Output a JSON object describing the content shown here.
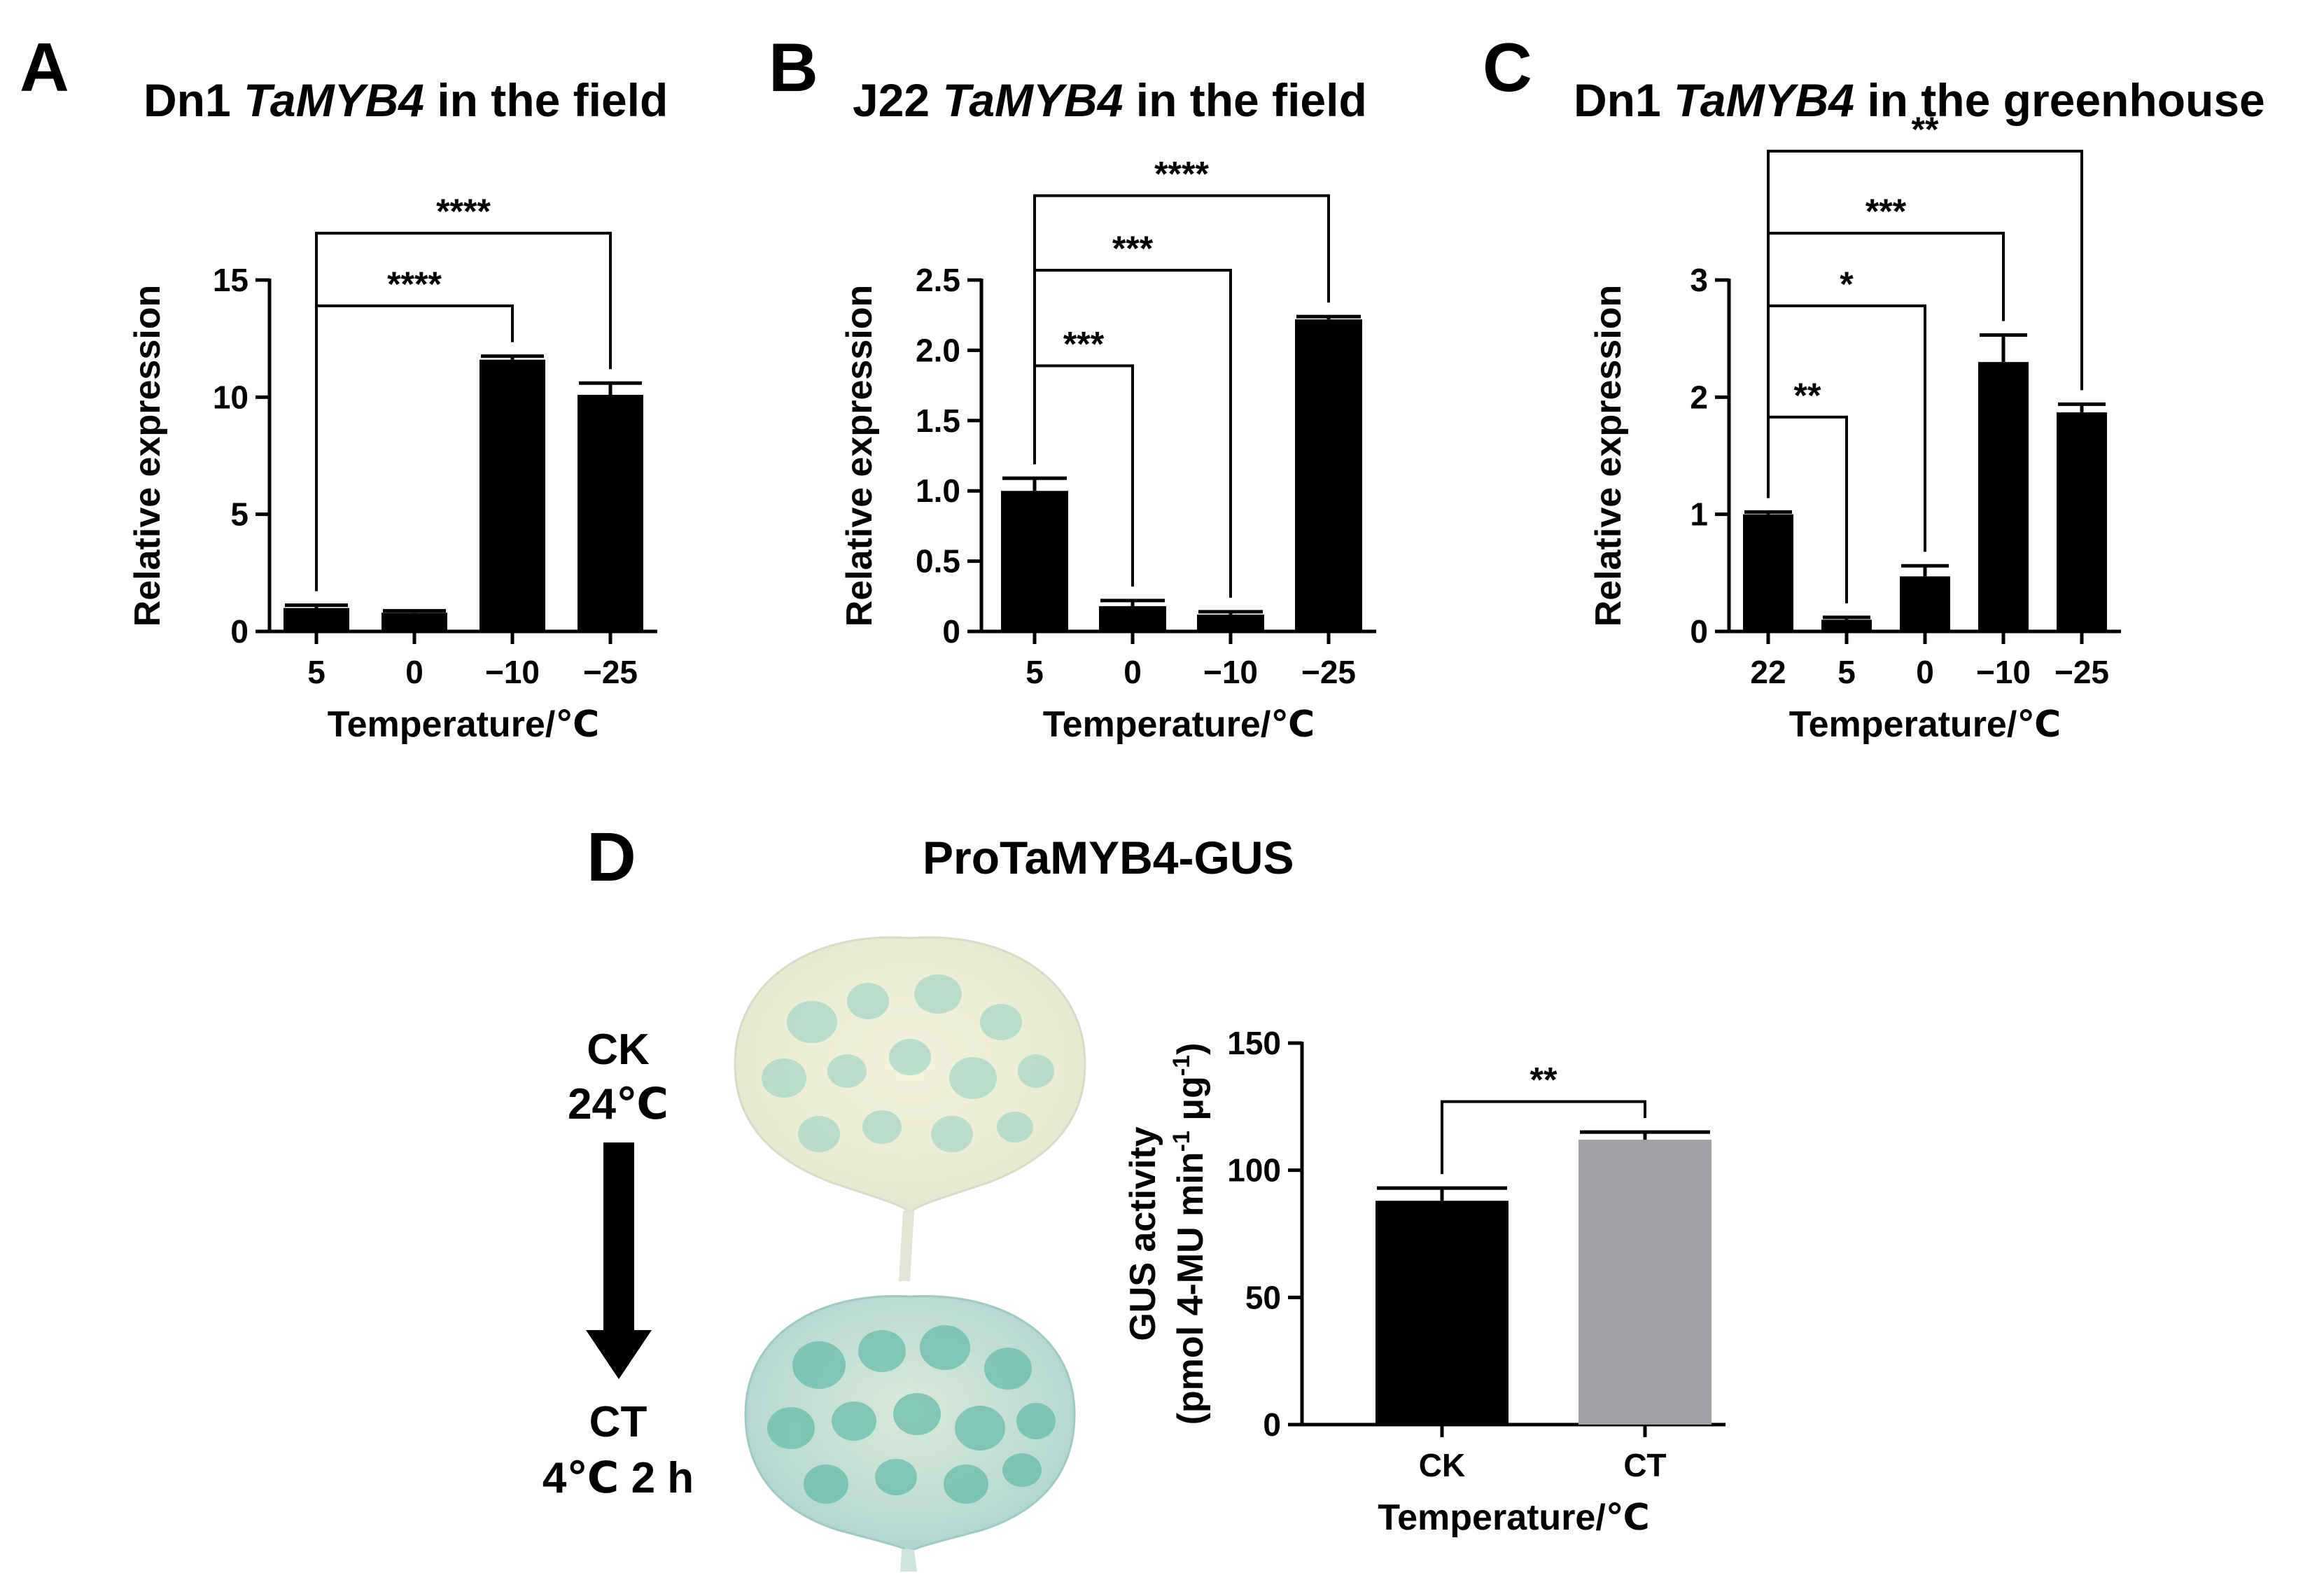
{
  "figure": {
    "panels": {
      "A": {
        "letter": "A",
        "title_prefix": "Dn1 ",
        "title_italic": "TaMYB4",
        "title_suffix": " in the field"
      },
      "B": {
        "letter": "B",
        "title_prefix": "J22 ",
        "title_italic": "TaMYB4",
        "title_suffix": " in the field"
      },
      "C": {
        "letter": "C",
        "title_prefix": "Dn1 ",
        "title_italic": "TaMYB4",
        "title_suffix": " in the greenhouse"
      },
      "D": {
        "letter": "D",
        "title": "ProTaMYB4-GUS",
        "condition_top_line1": "CK",
        "condition_top_line2": "24℃",
        "condition_bottom_line1": "CT",
        "condition_bottom_line2": "4℃ 2 h",
        "leaf_top_icon": "leaf-light-staining",
        "leaf_bottom_icon": "leaf-strong-staining",
        "arrow_icon": "down-arrow"
      }
    }
  },
  "chart_data": [
    {
      "id": "A",
      "type": "bar",
      "title": "Dn1 TaMYB4 in the field",
      "xlabel": "Temperature/℃",
      "ylabel": "Relative expression",
      "categories": [
        "5",
        "0",
        "−10",
        "−25"
      ],
      "values": [
        1.0,
        0.8,
        11.6,
        10.1
      ],
      "errors": [
        0.12,
        0.08,
        0.15,
        0.5
      ],
      "ylim": [
        0,
        15
      ],
      "yticks": [
        "0",
        "5",
        "10",
        "15"
      ],
      "ytick_values": [
        0,
        5,
        10,
        15
      ],
      "bar_colors": [
        "#000000",
        "#000000",
        "#000000",
        "#000000"
      ],
      "significance": [
        {
          "from": 0,
          "to": 2,
          "label": "****",
          "level": 13.9
        },
        {
          "from": 0,
          "to": 3,
          "label": "****",
          "level": 17.0
        }
      ]
    },
    {
      "id": "B",
      "type": "bar",
      "title": "J22 TaMYB4 in the field",
      "xlabel": "Temperature/℃",
      "ylabel": "Relative expression",
      "categories": [
        "5",
        "0",
        "−10",
        "−25"
      ],
      "values": [
        1.0,
        0.18,
        0.12,
        2.22
      ],
      "errors": [
        0.09,
        0.04,
        0.02,
        0.02
      ],
      "ylim": [
        0,
        2.5
      ],
      "yticks": [
        "0",
        "0.5",
        "1.0",
        "1.5",
        "2.0",
        "2.5"
      ],
      "ytick_values": [
        0,
        0.5,
        1.0,
        1.5,
        2.0,
        2.5
      ],
      "bar_colors": [
        "#000000",
        "#000000",
        "#000000",
        "#000000"
      ],
      "significance": [
        {
          "from": 0,
          "to": 1,
          "label": "***",
          "level": 1.89
        },
        {
          "from": 0,
          "to": 2,
          "label": "***",
          "level": 2.57
        },
        {
          "from": 0,
          "to": 3,
          "label": "****",
          "level": 3.1
        }
      ]
    },
    {
      "id": "C",
      "type": "bar",
      "title": "Dn1 TaMYB4 in the greenhouse",
      "xlabel": "Temperature/℃",
      "ylabel": "Relative expression",
      "categories": [
        "22",
        "5",
        "0",
        "−10",
        "−25"
      ],
      "values": [
        1.0,
        0.1,
        0.47,
        2.3,
        1.87
      ],
      "errors": [
        0.02,
        0.02,
        0.09,
        0.23,
        0.07
      ],
      "ylim": [
        0,
        3
      ],
      "yticks": [
        "0",
        "1",
        "2",
        "3"
      ],
      "ytick_values": [
        0,
        1,
        2,
        3
      ],
      "bar_colors": [
        "#000000",
        "#000000",
        "#000000",
        "#000000",
        "#000000"
      ],
      "significance": [
        {
          "from": 0,
          "to": 1,
          "label": "**",
          "level": 1.83
        },
        {
          "from": 0,
          "to": 2,
          "label": "*",
          "level": 2.78
        },
        {
          "from": 0,
          "to": 3,
          "label": "***",
          "level": 3.4
        },
        {
          "from": 0,
          "to": 4,
          "label": "**",
          "level": 4.1
        }
      ]
    },
    {
      "id": "D",
      "type": "bar",
      "title": "",
      "xlabel": "Temperature/℃",
      "ylabel_line1": "GUS activity",
      "ylabel_line2_parts": [
        "(pmol 4-MU min",
        "-1",
        " μg",
        "-1",
        ")"
      ],
      "categories": [
        "CK",
        "CT"
      ],
      "values": [
        88,
        112
      ],
      "errors": [
        5,
        3
      ],
      "ylim": [
        0,
        150
      ],
      "yticks": [
        "0",
        "50",
        "100",
        "150"
      ],
      "ytick_values": [
        0,
        50,
        100,
        150
      ],
      "bar_colors": [
        "#000000",
        "#a2a2a6"
      ],
      "significance": [
        {
          "from": 0,
          "to": 1,
          "label": "**",
          "level": 127
        }
      ]
    }
  ]
}
